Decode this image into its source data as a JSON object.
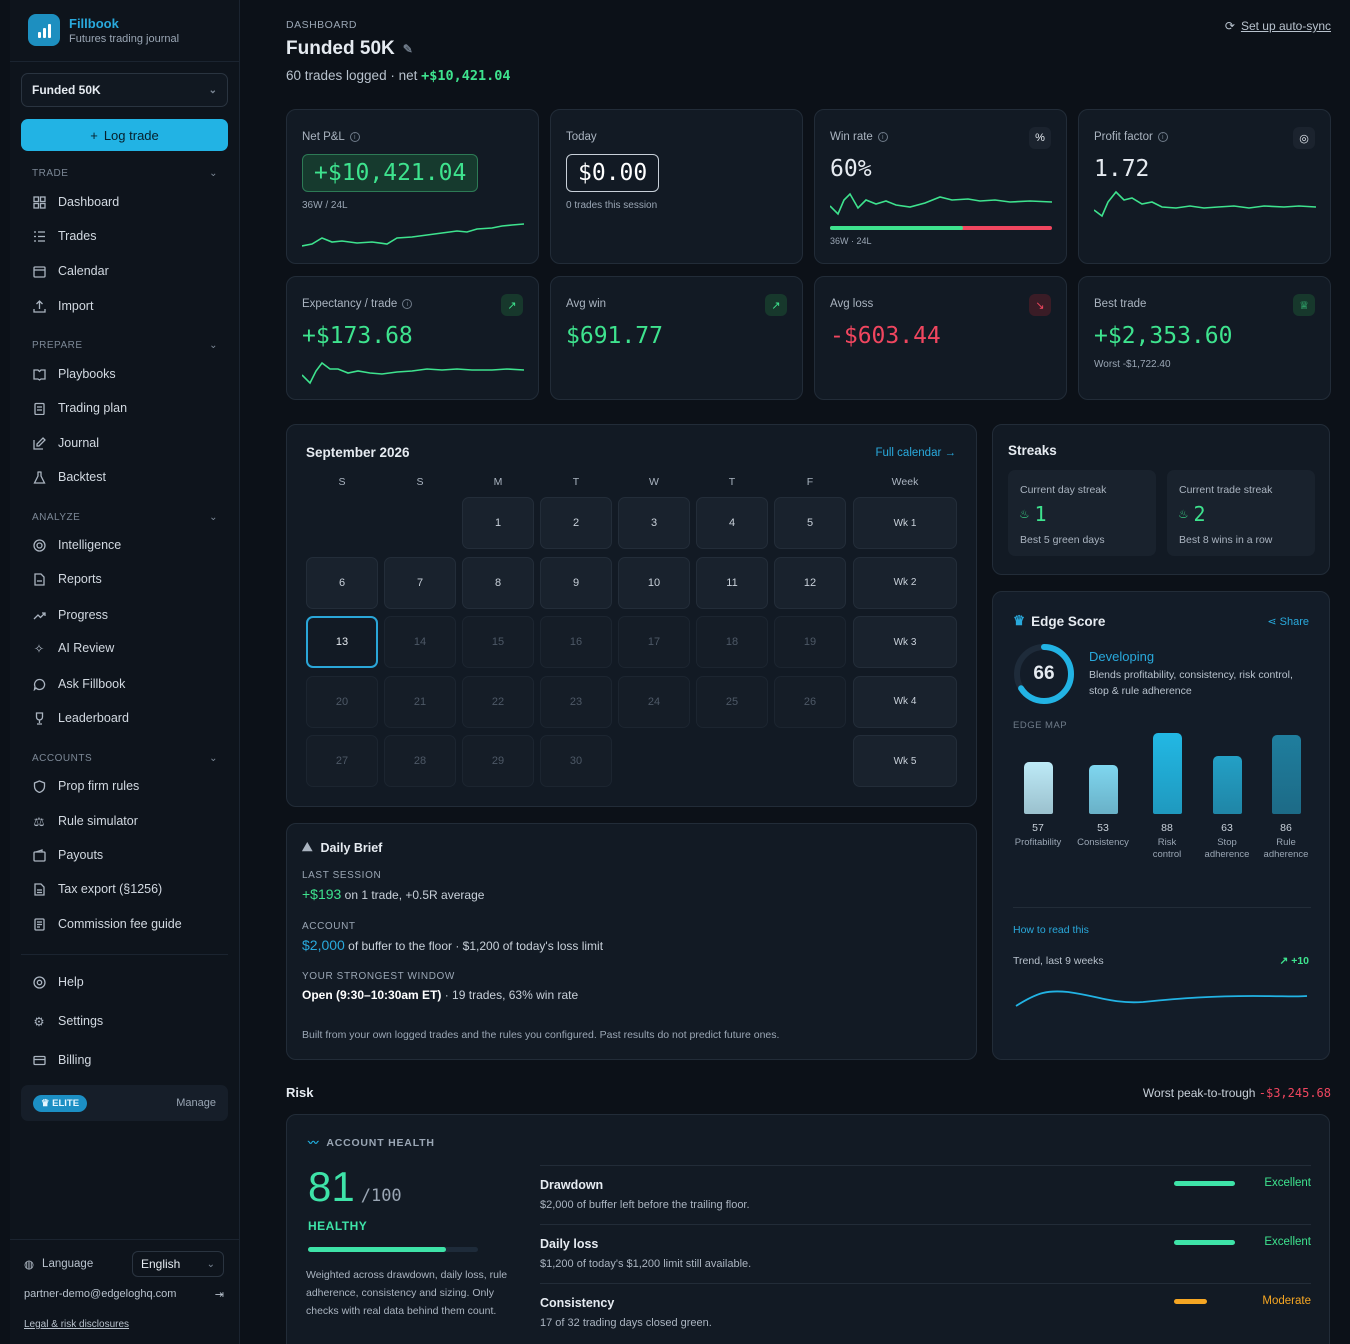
{
  "brand": {
    "name": "Fillbook",
    "tagline": "Futures trading journal"
  },
  "account_selector": {
    "value": "Funded 50K"
  },
  "log_trade_label": "Log trade",
  "sidebar": {
    "sections": [
      {
        "title": "TRADE",
        "items": [
          "Dashboard",
          "Trades",
          "Calendar",
          "Import"
        ]
      },
      {
        "title": "PREPARE",
        "items": [
          "Playbooks",
          "Trading plan",
          "Journal",
          "Backtest"
        ]
      },
      {
        "title": "ANALYZE",
        "items": [
          "Intelligence",
          "Reports",
          "Progress",
          "AI Review",
          "Ask Fillbook",
          "Leaderboard"
        ]
      },
      {
        "title": "ACCOUNTS",
        "items": [
          "Prop firm rules",
          "Rule simulator",
          "Payouts",
          "Tax export (§1256)",
          "Commission fee guide"
        ]
      }
    ],
    "footer_items": [
      "Help",
      "Settings",
      "Billing"
    ],
    "plan": {
      "badge": "ELITE",
      "manage": "Manage"
    },
    "language": {
      "label": "Language",
      "value": "English"
    },
    "email": "partner-demo@edgeloghq.com",
    "legal": "Legal & risk disclosures"
  },
  "header": {
    "breadcrumb": "DASHBOARD",
    "title": "Funded 50K",
    "subtitle_prefix": "60 trades logged · net ",
    "subtitle_net": "+$10,421.04",
    "autosync": "Set up auto-sync"
  },
  "kpis": {
    "net_pnl": {
      "label": "Net P&L",
      "value": "+$10,421.04",
      "sub": "36W / 24L"
    },
    "today": {
      "label": "Today",
      "value": "$0.00",
      "sub": "0 trades this session"
    },
    "win_rate": {
      "label": "Win rate",
      "value": "60%",
      "sub": "36W · 24L",
      "icon": "%",
      "win_fraction": 0.6
    },
    "profit_factor": {
      "label": "Profit factor",
      "value": "1.72"
    },
    "expectancy": {
      "label": "Expectancy / trade",
      "value": "+$173.68"
    },
    "avg_win": {
      "label": "Avg win",
      "value": "$691.77"
    },
    "avg_loss": {
      "label": "Avg loss",
      "value": "-$603.44"
    },
    "best_trade": {
      "label": "Best trade",
      "value": "+$2,353.60",
      "sub": "Worst -$1,722.40"
    }
  },
  "calendar": {
    "title": "September 2026",
    "link": "Full calendar",
    "headers": [
      "S",
      "S",
      "M",
      "T",
      "W",
      "T",
      "F",
      "Week"
    ],
    "weeks": [
      {
        "days": [
          "",
          "",
          "1",
          "2",
          "3",
          "4",
          "5"
        ],
        "label": "Wk 1"
      },
      {
        "days": [
          "6",
          "7",
          "8",
          "9",
          "10",
          "11",
          "12"
        ],
        "label": "Wk 2"
      },
      {
        "days": [
          "13",
          "14",
          "15",
          "16",
          "17",
          "18",
          "19"
        ],
        "label": "Wk 3"
      },
      {
        "days": [
          "20",
          "21",
          "22",
          "23",
          "24",
          "25",
          "26"
        ],
        "label": "Wk 4"
      },
      {
        "days": [
          "27",
          "28",
          "29",
          "30",
          "",
          "",
          ""
        ],
        "label": "Wk 5"
      }
    ],
    "today": "13"
  },
  "streaks": {
    "title": "Streaks",
    "day": {
      "label": "Current day streak",
      "value": "1",
      "best": "Best 5 green days"
    },
    "trade": {
      "label": "Current trade streak",
      "value": "2",
      "best": "Best 8 wins in a row"
    }
  },
  "edge": {
    "title": "Edge Score",
    "share": "Share",
    "score": "66",
    "score_value": 66,
    "status": "Developing",
    "desc": "Blends profitability, consistency, risk control, stop & rule adherence",
    "map_label": "EDGE MAP",
    "bars": [
      {
        "value": 57,
        "label": "Profitability"
      },
      {
        "value": 53,
        "label": "Consistency"
      },
      {
        "value": 88,
        "label": "Risk control"
      },
      {
        "value": 63,
        "label": "Stop adherence"
      },
      {
        "value": 86,
        "label": "Rule adherence"
      }
    ],
    "how_to": "How to read this",
    "trend_label": "Trend, last 9 weeks",
    "trend_delta": "+10"
  },
  "brief": {
    "title": "Daily Brief",
    "last_session_h": "LAST SESSION",
    "last_session_val": "+$193",
    "last_session_rest": " on 1 trade, +0.5R average",
    "account_h": "ACCOUNT",
    "account_val": "$2,000",
    "account_rest": " of buffer to the floor · $1,200 of today's loss limit",
    "window_h": "YOUR STRONGEST WINDOW",
    "window_val": "Open (9:30–10:30am ET)",
    "window_rest": " · 19 trades, 63% win rate",
    "footnote": "Built from your own logged trades and the rules you configured. Past results do not predict future ones."
  },
  "risk": {
    "title": "Risk",
    "worst_label": "Worst peak-to-trough ",
    "worst_value": "-$3,245.68",
    "health": {
      "label": "ACCOUNT HEALTH",
      "score": "81",
      "out_of": "/100",
      "status": "HEALTHY",
      "score_value": 81,
      "desc": "Weighted across drawdown, daily loss, rule adherence, consistency and sizing. Only checks with real data behind them count."
    },
    "rows": [
      {
        "name": "Drawdown",
        "desc": "$2,000 of buffer left before the trailing floor.",
        "status": "Excellent",
        "color": "#3ee3a8"
      },
      {
        "name": "Daily loss",
        "desc": "$1,200 of today's $1,200 limit still available.",
        "status": "Excellent",
        "color": "#3ee3a8"
      },
      {
        "name": "Consistency",
        "desc": "17 of 32 trading days closed green.",
        "status": "Moderate",
        "color": "#f5a623"
      }
    ]
  },
  "colors": {
    "accent": "#22b3e4",
    "green": "#3ee38e",
    "red": "#f0465f"
  }
}
